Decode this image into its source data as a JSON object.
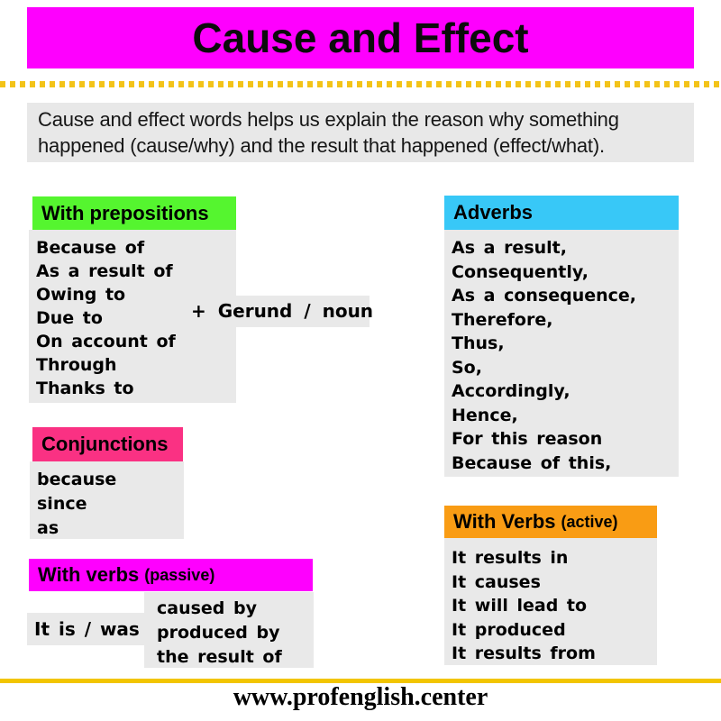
{
  "page": {
    "title": "Cause and Effect",
    "description": "Cause and effect words helps us explain the reason why something happened (cause/why) and the result that happened (effect/what).",
    "footer_url": "www.profenglish.center"
  },
  "colors": {
    "banner_magenta": "#fe00fe",
    "separator_yellow": "#f3c318",
    "box_gray": "#e9e9e9",
    "prepositions_green": "#55f52f",
    "conjunctions_pink": "#fa3183",
    "adverbs_blue": "#38c8f7",
    "active_orange": "#f99c14"
  },
  "sections": {
    "prepositions": {
      "header": "With prepositions",
      "items": [
        "Because of",
        "As a result of",
        "Owing to",
        "Due to",
        "On account of",
        "Through",
        "Thanks to"
      ],
      "suffix": "+ Gerund / noun"
    },
    "conjunctions": {
      "header": "Conjunctions",
      "items": [
        "because",
        "since",
        "as"
      ]
    },
    "verbs_passive": {
      "header_main": "With verbs",
      "header_paren": "(passive)",
      "subject": "It is / was",
      "items": [
        "caused by",
        "produced by",
        "the result of"
      ]
    },
    "adverbs": {
      "header": "Adverbs",
      "items": [
        "As a result,",
        "Consequently,",
        "As a consequence,",
        "Therefore,",
        "Thus,",
        "So,",
        "Accordingly,",
        "Hence,",
        "For this reason",
        "Because of this,"
      ]
    },
    "verbs_active": {
      "header_main": "With Verbs",
      "header_paren": "(active)",
      "items": [
        "It results in",
        "It causes",
        "It will lead to",
        "It produced",
        "It results from"
      ]
    }
  }
}
